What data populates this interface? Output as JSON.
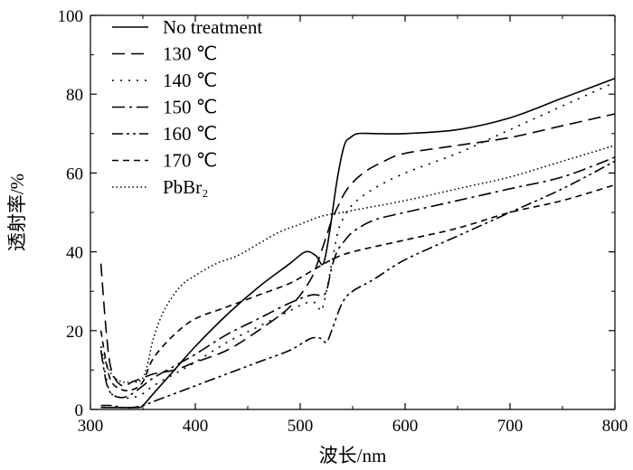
{
  "chart_data": {
    "type": "line",
    "xlabel": "波长/nm",
    "ylabel": "透射率/%",
    "xlim": [
      300,
      800
    ],
    "ylim": [
      0,
      100
    ],
    "xticks": [
      300,
      400,
      500,
      600,
      700,
      800
    ],
    "yticks": [
      0,
      20,
      40,
      60,
      80,
      100
    ],
    "grid": false,
    "legend_position": "top-left",
    "series": [
      {
        "name": "No treatment",
        "dash": "",
        "x": [
          310,
          330,
          345,
          350,
          360,
          380,
          400,
          430,
          460,
          490,
          505,
          515,
          522,
          528,
          535,
          542,
          548,
          555,
          570,
          600,
          650,
          700,
          750,
          800
        ],
        "y": [
          0.5,
          0.5,
          0.5,
          1,
          4,
          10,
          16,
          24,
          31,
          37,
          40,
          39,
          37,
          45,
          58,
          67,
          69,
          70,
          70,
          70,
          71,
          74,
          79,
          84
        ]
      },
      {
        "name": "130 ℃",
        "dash": "14 7",
        "x": [
          310,
          315,
          320,
          330,
          340,
          350,
          360,
          380,
          400,
          430,
          460,
          490,
          510,
          520,
          525,
          530,
          535,
          545,
          560,
          580,
          600,
          650,
          700,
          750,
          800
        ],
        "y": [
          37,
          20,
          10,
          6,
          7,
          8,
          9,
          10,
          12,
          15,
          20,
          26,
          33,
          40,
          44,
          48,
          51,
          56,
          60,
          63,
          65,
          67,
          69,
          72,
          75
        ]
      },
      {
        "name": "140 ℃",
        "dash": "2 7",
        "x": [
          310,
          315,
          320,
          330,
          340,
          350,
          360,
          380,
          400,
          430,
          460,
          490,
          505,
          515,
          520,
          525,
          530,
          535,
          540,
          550,
          570,
          600,
          650,
          700,
          750,
          800
        ],
        "y": [
          16,
          8,
          4,
          3,
          3,
          4,
          6,
          9,
          12,
          17,
          21,
          25,
          27,
          27,
          25,
          30,
          37,
          44,
          48,
          52,
          56,
          60,
          65,
          71,
          77,
          83
        ]
      },
      {
        "name": "150 ℃",
        "dash": "14 5 3 5",
        "x": [
          310,
          315,
          320,
          330,
          340,
          350,
          360,
          380,
          400,
          430,
          460,
          490,
          510,
          520,
          525,
          530,
          535,
          540,
          550,
          570,
          600,
          650,
          700,
          750,
          800
        ],
        "y": [
          15,
          7,
          4,
          3,
          4,
          6,
          8,
          11,
          14,
          19,
          23,
          27,
          29,
          29,
          30,
          36,
          40,
          42,
          45,
          48,
          50,
          53,
          56,
          59,
          64
        ]
      },
      {
        "name": "160 ℃",
        "dash": "12 4 3 4 3 4",
        "x": [
          310,
          320,
          330,
          340,
          350,
          360,
          380,
          400,
          430,
          460,
          490,
          510,
          520,
          525,
          530,
          540,
          550,
          570,
          600,
          650,
          700,
          750,
          800
        ],
        "y": [
          1,
          1,
          0.5,
          0.5,
          1,
          2,
          4,
          6,
          9,
          12,
          15,
          18,
          18,
          17,
          20,
          27,
          30,
          33,
          38,
          44,
          50,
          56,
          63
        ]
      },
      {
        "name": "170 ℃",
        "dash": "7 5",
        "x": [
          310,
          315,
          320,
          330,
          340,
          350,
          360,
          380,
          400,
          430,
          460,
          490,
          510,
          530,
          550,
          600,
          650,
          700,
          750,
          800
        ],
        "y": [
          20,
          12,
          7,
          5,
          5,
          7,
          13,
          19,
          23,
          26,
          29,
          32,
          35,
          38,
          40,
          43,
          46,
          50,
          53,
          57
        ]
      },
      {
        "name": "PbBr₂",
        "dash": "1.5 3",
        "x": [
          310,
          320,
          330,
          340,
          345,
          350,
          355,
          360,
          370,
          385,
          400,
          420,
          440,
          460,
          480,
          500,
          520,
          540,
          560,
          600,
          650,
          700,
          750,
          800
        ],
        "y": [
          15,
          9,
          7,
          7,
          7,
          8,
          12,
          18,
          25,
          31,
          34,
          37,
          39,
          42,
          45,
          47,
          49,
          50,
          51,
          53,
          56,
          59,
          63,
          67
        ]
      }
    ]
  }
}
